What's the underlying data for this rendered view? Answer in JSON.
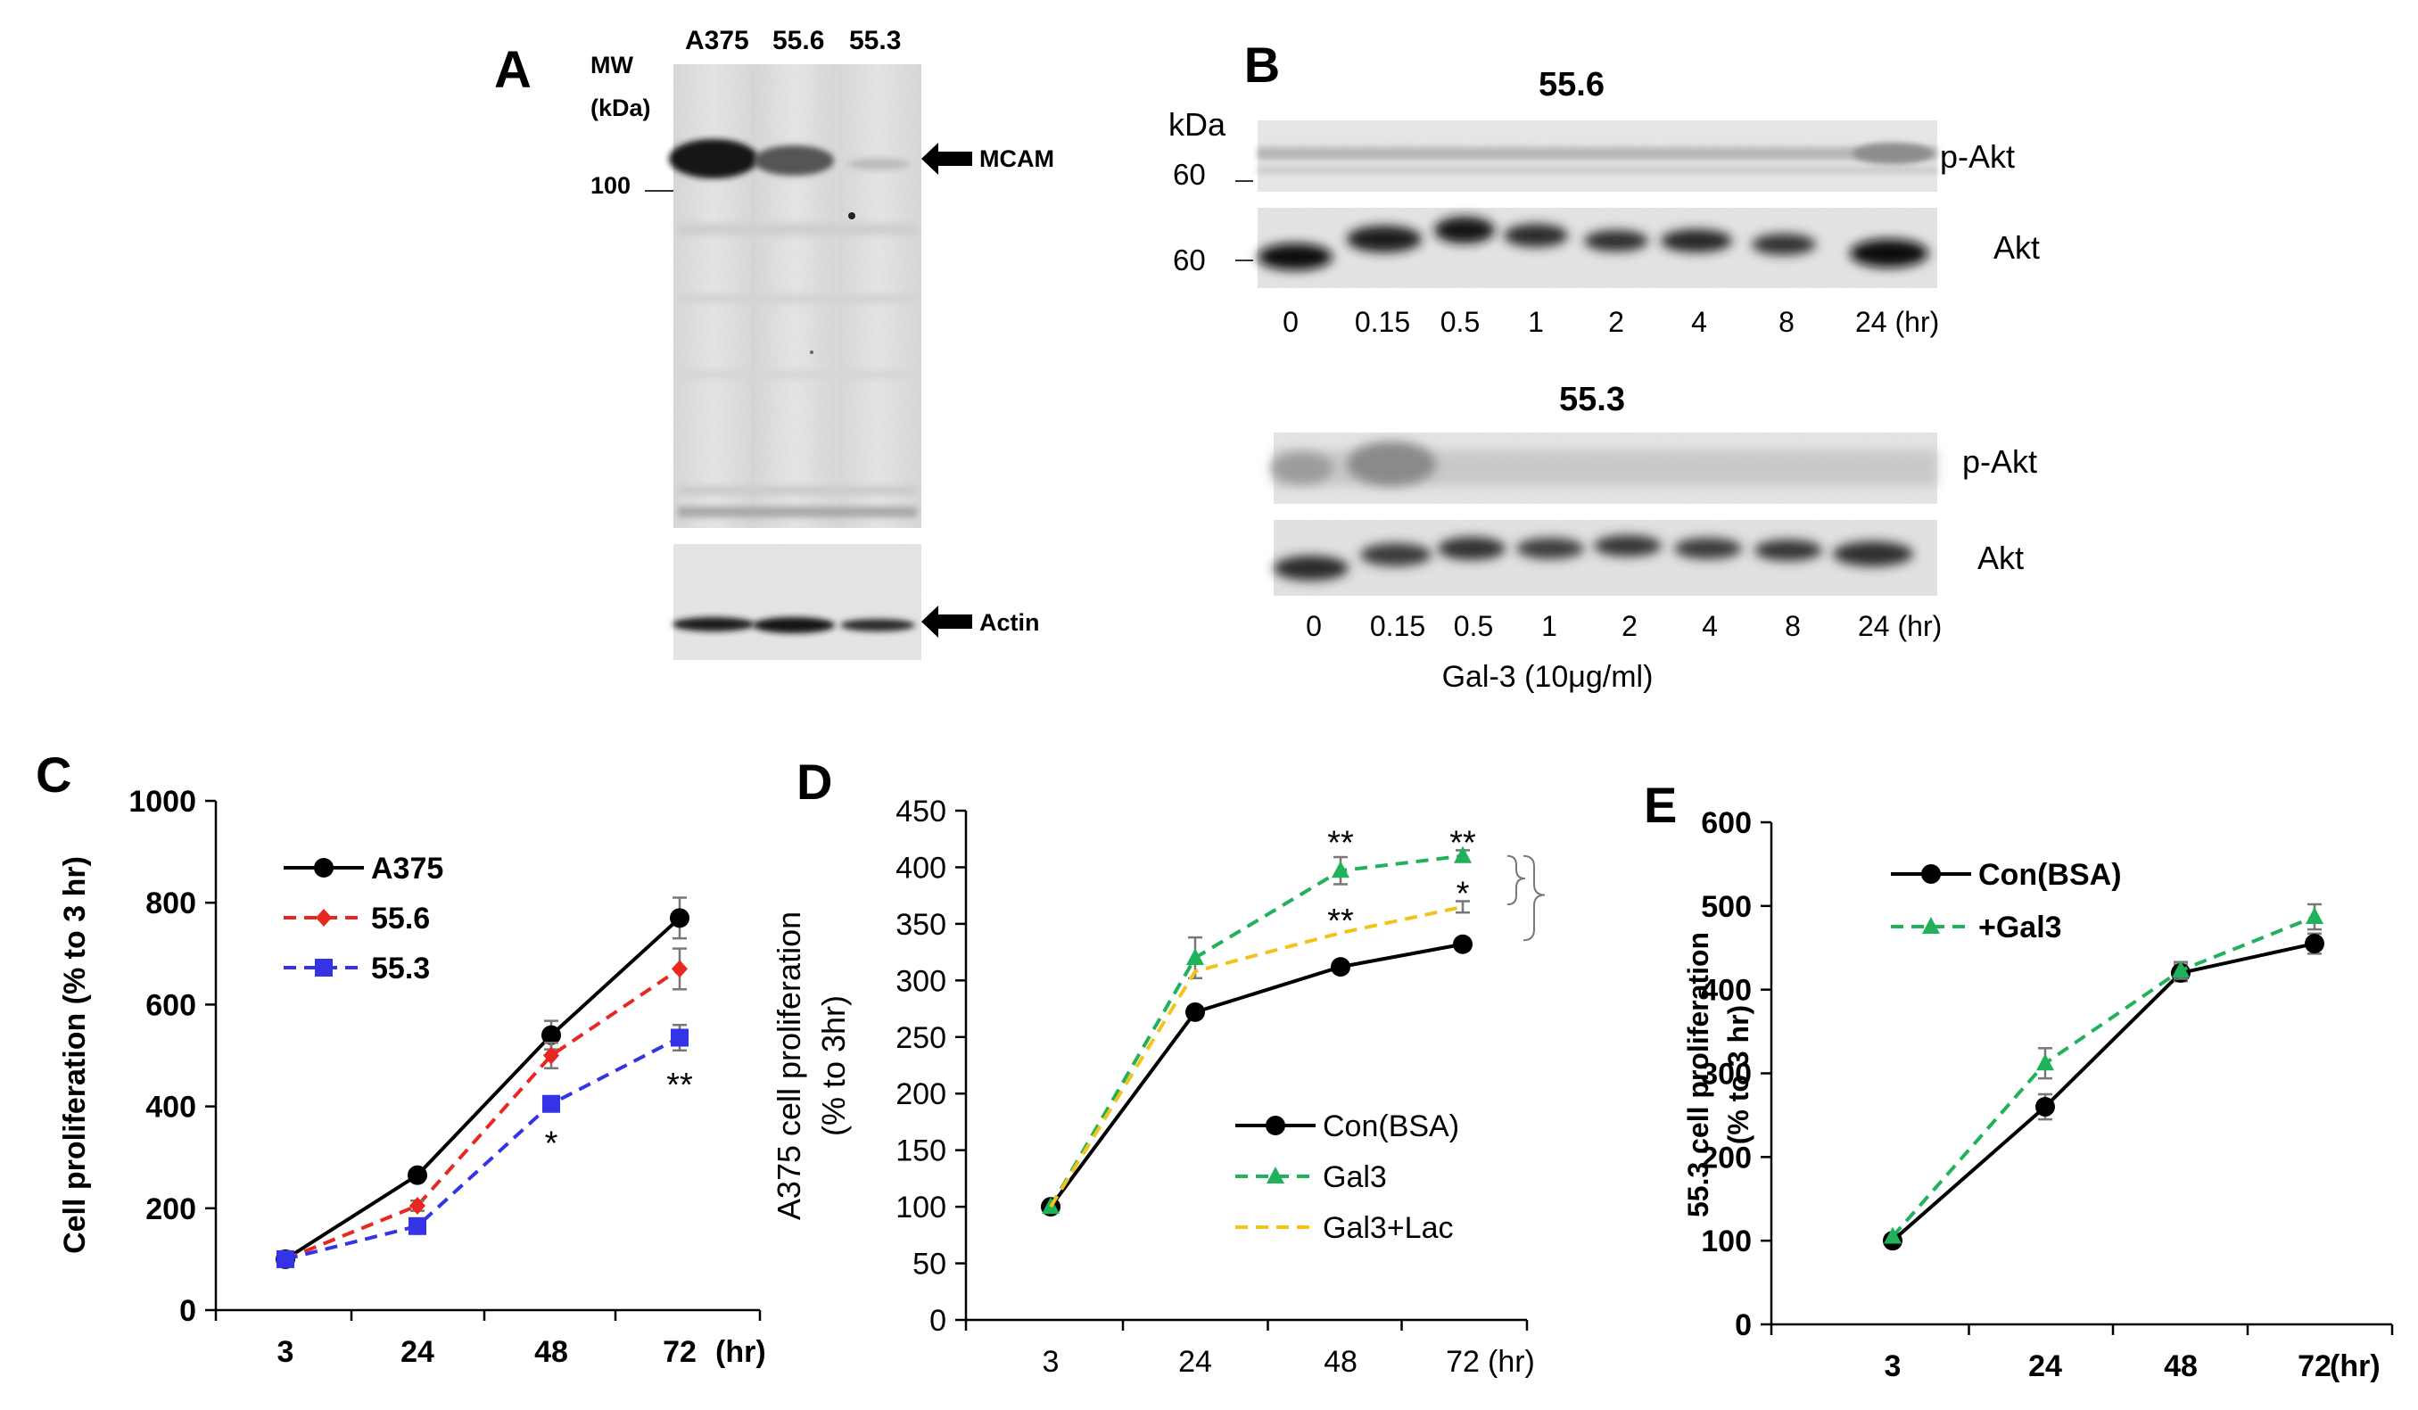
{
  "panels": {
    "a": {
      "letter": "A",
      "mw_label_1": "MW",
      "mw_label_2": "(kDa)",
      "mw_100": "100",
      "lanes": [
        "A375",
        "55.6",
        "55.3"
      ],
      "mcam_label": "MCAM",
      "actin_label": "Actin"
    },
    "b": {
      "letter": "B",
      "blot1_title": "55.6",
      "blot2_title": "55.3",
      "kda_label": "kDa",
      "marker_60": "60",
      "pakt_label": "p-Akt",
      "akt_label": "Akt",
      "times": [
        "0",
        "0.15",
        "0.5",
        "1",
        "2",
        "4",
        "8",
        "24 (hr)"
      ],
      "treatment": "Gal-3 (10μg/ml)"
    }
  },
  "chart_data": [
    {
      "panel": "C",
      "type": "line",
      "ylabel": "Cell proliferation (% to 3 hr)",
      "categories": [
        "3",
        "24",
        "48",
        "72"
      ],
      "x_unit": "(hr)",
      "ylim": [
        0,
        1000
      ],
      "yticks": [
        "0",
        "200",
        "400",
        "600",
        "800",
        "1000"
      ],
      "legend_position": "top-left",
      "series": [
        {
          "name": "A375",
          "values": [
            100,
            265,
            540,
            770
          ],
          "errors": [
            0,
            10,
            28,
            40
          ],
          "color": "#000000",
          "marker": "circle",
          "dash": "solid"
        },
        {
          "name": "55.6",
          "values": [
            100,
            205,
            500,
            670
          ],
          "errors": [
            0,
            10,
            25,
            40
          ],
          "color": "#e8281f",
          "marker": "diamond",
          "dash": "dashed"
        },
        {
          "name": "55.3",
          "values": [
            100,
            165,
            405,
            535
          ],
          "errors": [
            0,
            10,
            15,
            25
          ],
          "color": "#3434e6",
          "marker": "square",
          "dash": "dashed"
        }
      ],
      "annotations": [
        {
          "text": "*",
          "x": "48",
          "y": 330
        },
        {
          "text": "**",
          "x": "72",
          "y": 445
        }
      ]
    },
    {
      "panel": "D",
      "type": "line",
      "ylabel_1": "A375 cell proliferation",
      "ylabel_2": "(% to 3hr)",
      "categories": [
        "3",
        "24",
        "48",
        "72"
      ],
      "x_unit": "(hr)",
      "ylim": [
        0,
        450
      ],
      "yticks": [
        "0",
        "50",
        "100",
        "150",
        "200",
        "250",
        "300",
        "350",
        "400",
        "450"
      ],
      "legend_position": "bottom-right",
      "series": [
        {
          "name": "Con(BSA)",
          "values": [
            100,
            272,
            312,
            332
          ],
          "errors": [
            0,
            5,
            5,
            3
          ],
          "color": "#000000",
          "marker": "circle",
          "dash": "solid"
        },
        {
          "name": "Gal3",
          "values": [
            100,
            320,
            397,
            410
          ],
          "errors": [
            0,
            18,
            12,
            5
          ],
          "color": "#1fb25a",
          "marker": "triangle",
          "dash": "dashed"
        },
        {
          "name": "Gal3+Lac",
          "values": [
            100,
            308,
            342,
            365
          ],
          "errors": [
            0,
            0,
            0,
            5
          ],
          "color": "#f5c21b",
          "marker": "none",
          "dash": "dashed"
        }
      ],
      "annotations": [
        {
          "text": "**",
          "x": "48",
          "y": 423
        },
        {
          "text": "**",
          "x": "72",
          "y": 423
        },
        {
          "text": "**",
          "x": "48",
          "y": 354
        },
        {
          "text": "*",
          "x": "72",
          "y": 378
        }
      ]
    },
    {
      "panel": "E",
      "type": "line",
      "ylabel_1": "55.3 cell proliferation",
      "ylabel_2": "(% to 3 hr)",
      "categories": [
        "3",
        "24",
        "48",
        "72"
      ],
      "x_unit": "(hr)",
      "ylim": [
        0,
        600
      ],
      "yticks": [
        "0",
        "100",
        "200",
        "300",
        "400",
        "500",
        "600"
      ],
      "legend_position": "top-left",
      "series": [
        {
          "name": "Con(BSA)",
          "values": [
            100,
            260,
            420,
            455
          ],
          "errors": [
            0,
            15,
            10,
            12
          ],
          "color": "#000000",
          "marker": "circle",
          "dash": "solid"
        },
        {
          "name": "+Gal3",
          "values": [
            105,
            312,
            423,
            487
          ],
          "errors": [
            0,
            18,
            10,
            15
          ],
          "color": "#1fb25a",
          "marker": "triangle",
          "dash": "dashed"
        }
      ]
    }
  ]
}
